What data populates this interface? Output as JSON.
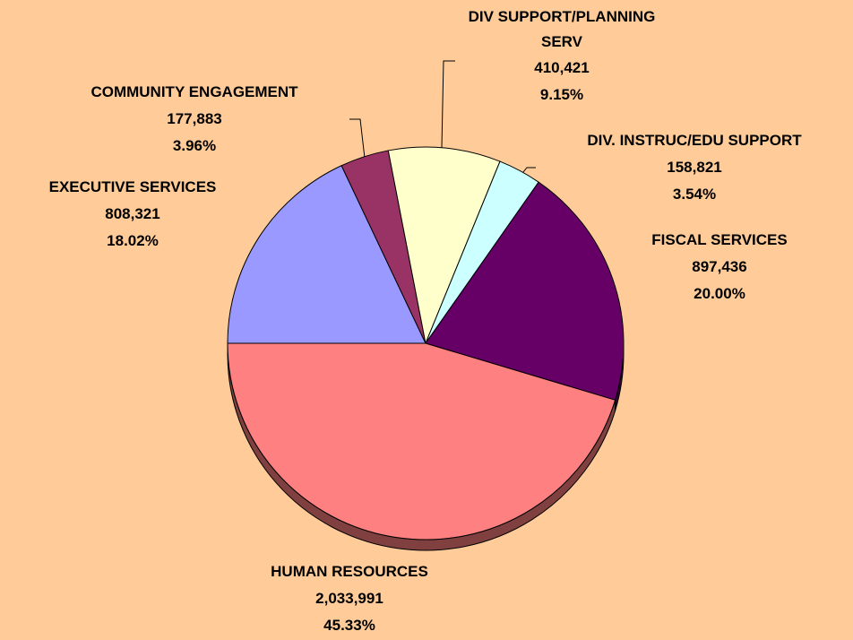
{
  "chart_data": {
    "type": "pie",
    "categories": [
      "EXECUTIVE SERVICES",
      "COMMUNITY ENGAGEMENT",
      "DIV SUPPORT/PLANNING SERV",
      "DIV. INSTRUC/EDU SUPPORT",
      "FISCAL SERVICES",
      "HUMAN RESOURCES"
    ],
    "values": [
      808321,
      177883,
      410421,
      158821,
      897436,
      2033991
    ],
    "value_labels": [
      "808,321",
      "177,883",
      "410,421",
      "158,821",
      "897,436",
      "2,033,991"
    ],
    "percentages": [
      18.02,
      3.96,
      9.15,
      3.54,
      20.0,
      45.33
    ],
    "percentage_labels": [
      "18.02%",
      "3.96%",
      "9.15%",
      "3.54%",
      "20.00%",
      "45.33%"
    ],
    "colors": [
      "#9999ff",
      "#993366",
      "#ffffcc",
      "#ccffff",
      "#660066",
      "#ff8080"
    ]
  }
}
